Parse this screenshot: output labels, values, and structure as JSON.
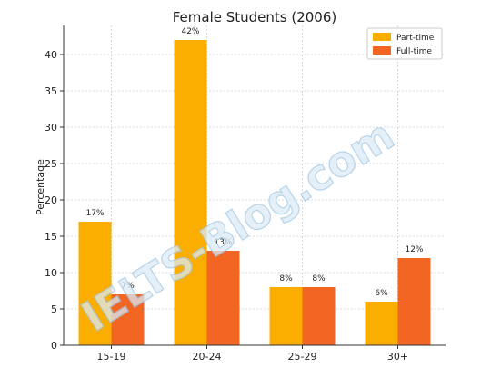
{
  "watermark": "IELTS-Blog.com",
  "chart_data": {
    "type": "bar",
    "title": "Female Students (2006)",
    "xlabel": "",
    "ylabel": "Percentage",
    "categories": [
      "15-19",
      "20-24",
      "25-29",
      "30+"
    ],
    "series": [
      {
        "name": "Part-time",
        "color": "#fbae00",
        "values": [
          17,
          42,
          8,
          6
        ],
        "labels": [
          "17%",
          "42%",
          "8%",
          "6%"
        ]
      },
      {
        "name": "Full-time",
        "color": "#f26522",
        "values": [
          7,
          13,
          8,
          12
        ],
        "labels": [
          "7%",
          "13%",
          "8%",
          "12%"
        ]
      }
    ],
    "ylim": [
      0,
      44
    ],
    "yticks": [
      0,
      5,
      10,
      15,
      20,
      25,
      30,
      35,
      40
    ],
    "grid": true,
    "legend_position": "top-right"
  }
}
